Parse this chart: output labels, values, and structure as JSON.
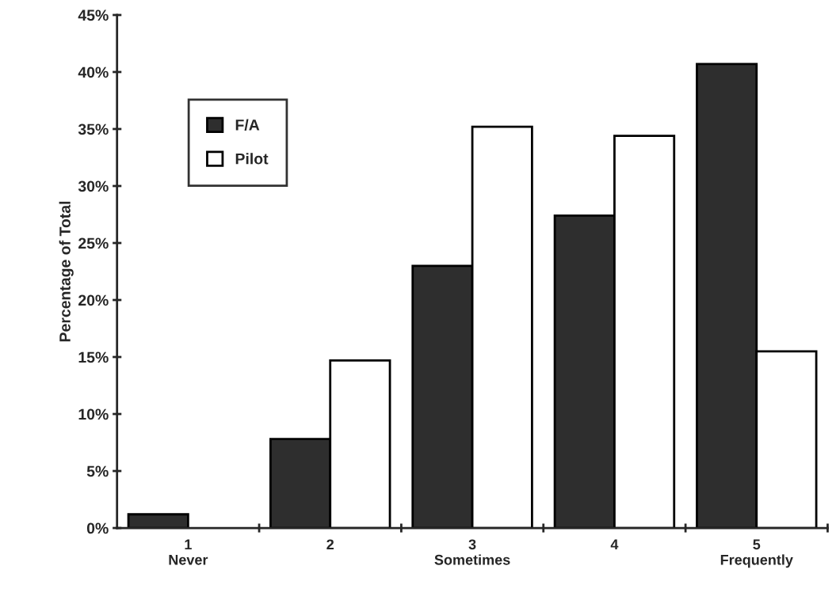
{
  "chart_data": {
    "type": "bar",
    "ylabel": "Percentage of Total",
    "categories": [
      "1\nNever",
      "2",
      "3\nSometimes",
      "4",
      "5\nFrequently"
    ],
    "series": [
      {
        "name": "F/A",
        "color": "#2e2e2e",
        "values": [
          1.2,
          7.8,
          23.0,
          27.4,
          40.7
        ]
      },
      {
        "name": "Pilot",
        "color": "#ffffff",
        "values": [
          null,
          14.7,
          35.2,
          34.4,
          15.5
        ]
      }
    ],
    "ylim": [
      0,
      45
    ],
    "yticks": [
      {
        "value": 0,
        "label": "0%"
      },
      {
        "value": 5,
        "label": "5%"
      },
      {
        "value": 10,
        "label": "10%"
      },
      {
        "value": 15,
        "label": "15%"
      },
      {
        "value": 20,
        "label": "20%"
      },
      {
        "value": 25,
        "label": "25%"
      },
      {
        "value": 30,
        "label": "30%"
      },
      {
        "value": 35,
        "label": "35%"
      },
      {
        "value": 40,
        "label": "40%"
      },
      {
        "value": 45,
        "label": "45%"
      }
    ],
    "grid": false,
    "legend": "top left"
  }
}
